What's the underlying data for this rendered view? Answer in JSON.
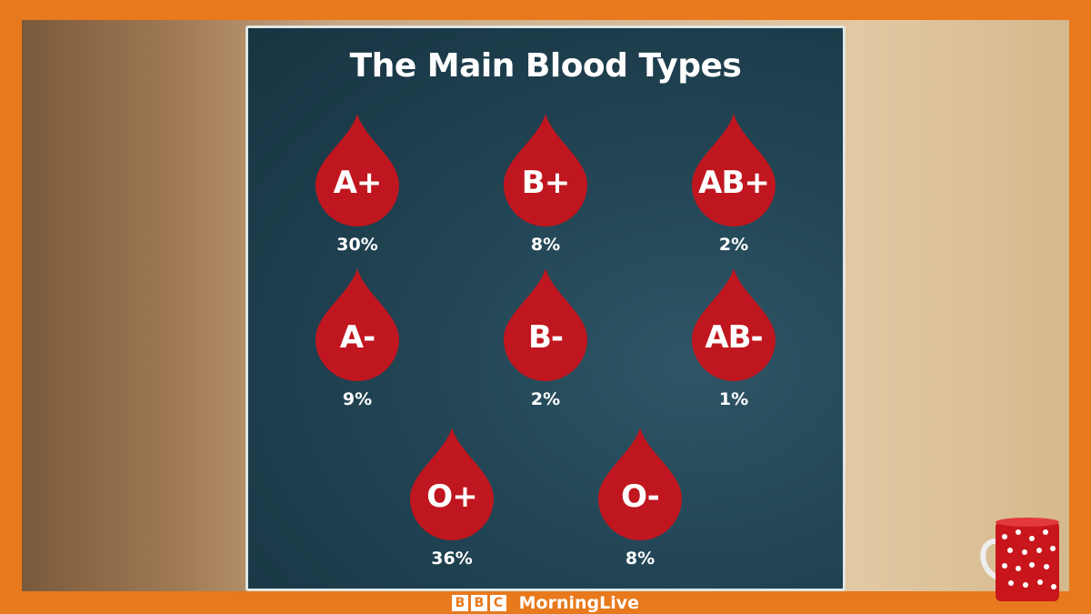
{
  "title": "The Main Blood Types",
  "blood_types": [
    {
      "type": "A+",
      "percent": "30%"
    },
    {
      "type": "B+",
      "percent": "8%"
    },
    {
      "type": "AB+",
      "percent": "2%"
    },
    {
      "type": "A-",
      "percent": "9%"
    },
    {
      "type": "B-",
      "percent": "2%"
    },
    {
      "type": "AB-",
      "percent": "1%"
    },
    {
      "type": "O+",
      "percent": "36%"
    },
    {
      "type": "O-",
      "percent": "8%"
    }
  ],
  "logo": {
    "bbc_letters": [
      "B",
      "B",
      "C"
    ],
    "show": "MorningLive"
  },
  "colors": {
    "frame": "#e8791c",
    "drop": "#c0161f",
    "panel": "#1f4150"
  }
}
